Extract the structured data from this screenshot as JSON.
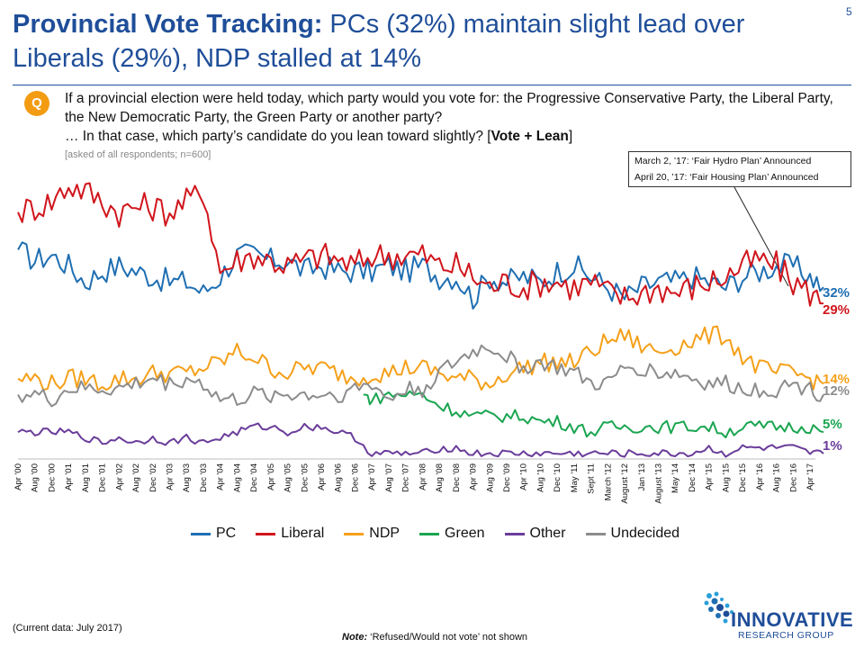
{
  "page_number": "5",
  "title": {
    "bold": "Provincial Vote Tracking:",
    "rest": " PCs (32%) maintain slight lead over Liberals (29%), NDP stalled at 14%"
  },
  "question": {
    "badge": "Q",
    "text": "If a provincial election were held today, which party would you vote for: the Progressive Conservative Party, the Liberal Party, the New Democratic Party, the Green Party or another party?",
    "lean_prefix": "… In that case, which party’s candidate do you lean toward slightly? [",
    "lean_bold": "Vote + Lean",
    "lean_suffix": "]",
    "base": "[asked of all respondents; n=600]"
  },
  "annotation": {
    "line1": "March 2, ’17: ‘Fair Hydro Plan’ Announced",
    "line2": "April 20, ’17: ‘Fair Housing Plan’ Announced"
  },
  "current_data": "(Current data: July 2017)",
  "footnote": {
    "bold": "Note:",
    "text": " ‘Refused/Would not vote’ not shown"
  },
  "logo": {
    "word": "INNOVATIVE",
    "sub": "RESEARCH GROUP"
  },
  "chart_data": {
    "type": "line",
    "x_tick_labels": [
      "Apr '00",
      "Aug '00",
      "Dec '00",
      "Apr '01",
      "Aug '01",
      "Dec '01",
      "Apr '02",
      "Aug '02",
      "Dec '02",
      "Apr '03",
      "Aug '03",
      "Dec '03",
      "Apr '04",
      "Aug '04",
      "Dec '04",
      "Apr '05",
      "Aug '05",
      "Dec '05",
      "Apr '06",
      "Aug '06",
      "Dec '06",
      "Apr '07",
      "Aug '07",
      "Dec '07",
      "Apr '08",
      "Aug '08",
      "Dec '08",
      "Apr '09",
      "Aug '09",
      "Dec '09",
      "Apr '10",
      "Aug '10",
      "Dec '10",
      "May '11",
      "Sept '11",
      "March '12",
      "August '12",
      "Jan '13",
      "August '13",
      "May '14",
      "Dec '14",
      "Apr '15",
      "Aug '15",
      "Dec '15",
      "Apr '16",
      "Aug '16",
      "Dec '16",
      "Apr '17"
    ],
    "legend_position": "bottom",
    "grid": false,
    "series": [
      {
        "name": "PC",
        "color": "#1f6fb2",
        "end_label": "32%",
        "keypoints": [
          [
            0,
            39
          ],
          [
            1,
            37
          ],
          [
            2,
            38
          ],
          [
            3,
            36
          ],
          [
            4,
            33
          ],
          [
            5,
            35
          ],
          [
            6,
            36
          ],
          [
            7,
            35
          ],
          [
            8,
            34
          ],
          [
            9,
            33
          ],
          [
            10,
            33
          ],
          [
            11,
            31
          ],
          [
            12,
            34
          ],
          [
            13,
            38
          ],
          [
            14,
            38
          ],
          [
            15,
            37
          ],
          [
            16,
            37
          ],
          [
            17,
            35
          ],
          [
            18,
            36
          ],
          [
            19,
            35
          ],
          [
            20,
            35
          ],
          [
            21,
            35
          ],
          [
            22,
            36
          ],
          [
            23,
            35
          ],
          [
            24,
            36
          ],
          [
            25,
            34
          ],
          [
            26,
            34
          ],
          [
            27,
            30
          ],
          [
            28,
            34
          ],
          [
            29,
            33
          ],
          [
            30,
            34
          ],
          [
            31,
            33
          ],
          [
            32,
            35
          ],
          [
            33,
            36
          ],
          [
            34,
            34
          ],
          [
            35,
            32
          ],
          [
            36,
            30
          ],
          [
            37,
            32
          ],
          [
            38,
            33
          ],
          [
            39,
            33
          ],
          [
            40,
            34
          ],
          [
            41,
            33
          ],
          [
            42,
            32
          ],
          [
            43,
            34
          ],
          [
            44,
            35
          ],
          [
            45,
            36
          ],
          [
            46,
            36
          ],
          [
            47,
            34
          ],
          [
            47.8,
            32
          ]
        ]
      },
      {
        "name": "Liberal",
        "color": "#d0151c",
        "end_label": "29%",
        "keypoints": [
          [
            0,
            46
          ],
          [
            1,
            47
          ],
          [
            2,
            48
          ],
          [
            3,
            51
          ],
          [
            4,
            50
          ],
          [
            5,
            48
          ],
          [
            6,
            46
          ],
          [
            7,
            47
          ],
          [
            8,
            47
          ],
          [
            9,
            46
          ],
          [
            10,
            48
          ],
          [
            11,
            50
          ],
          [
            12,
            35
          ],
          [
            13,
            37
          ],
          [
            14,
            38
          ],
          [
            15,
            37
          ],
          [
            16,
            36
          ],
          [
            17,
            37
          ],
          [
            18,
            38
          ],
          [
            19,
            37
          ],
          [
            20,
            36
          ],
          [
            21,
            38
          ],
          [
            22,
            38
          ],
          [
            23,
            38
          ],
          [
            24,
            38
          ],
          [
            25,
            36
          ],
          [
            26,
            36
          ],
          [
            27,
            34
          ],
          [
            28,
            32
          ],
          [
            29,
            33
          ],
          [
            30,
            32
          ],
          [
            31,
            33
          ],
          [
            32,
            33
          ],
          [
            33,
            32
          ],
          [
            34,
            33
          ],
          [
            35,
            31
          ],
          [
            36,
            30
          ],
          [
            37,
            31
          ],
          [
            38,
            32
          ],
          [
            39,
            31
          ],
          [
            40,
            32
          ],
          [
            41,
            33
          ],
          [
            42,
            34
          ],
          [
            43,
            36
          ],
          [
            44,
            37
          ],
          [
            45,
            36
          ],
          [
            46,
            33
          ],
          [
            47,
            31
          ],
          [
            47.8,
            29
          ]
        ]
      },
      {
        "name": "NDP",
        "color": "#f5a01a",
        "end_label": "14%",
        "keypoints": [
          [
            0,
            15
          ],
          [
            1,
            15
          ],
          [
            2,
            14
          ],
          [
            3,
            15
          ],
          [
            4,
            15
          ],
          [
            5,
            14
          ],
          [
            6,
            15
          ],
          [
            7,
            15
          ],
          [
            8,
            16
          ],
          [
            9,
            16
          ],
          [
            10,
            16
          ],
          [
            11,
            17
          ],
          [
            12,
            18
          ],
          [
            13,
            20
          ],
          [
            14,
            19
          ],
          [
            15,
            17
          ],
          [
            16,
            16
          ],
          [
            17,
            17
          ],
          [
            18,
            17
          ],
          [
            19,
            16
          ],
          [
            20,
            15
          ],
          [
            21,
            16
          ],
          [
            22,
            16
          ],
          [
            23,
            17
          ],
          [
            24,
            17
          ],
          [
            25,
            16
          ],
          [
            26,
            15
          ],
          [
            27,
            15
          ],
          [
            28,
            14
          ],
          [
            29,
            16
          ],
          [
            30,
            17
          ],
          [
            31,
            18
          ],
          [
            32,
            18
          ],
          [
            33,
            18
          ],
          [
            34,
            20
          ],
          [
            35,
            22
          ],
          [
            36,
            23
          ],
          [
            37,
            21
          ],
          [
            38,
            20
          ],
          [
            39,
            21
          ],
          [
            40,
            22
          ],
          [
            41,
            23
          ],
          [
            42,
            23
          ],
          [
            43,
            19
          ],
          [
            44,
            17
          ],
          [
            45,
            16
          ],
          [
            46,
            16
          ],
          [
            47,
            15
          ],
          [
            47.8,
            14
          ]
        ]
      },
      {
        "name": "Green",
        "color": "#1aa550",
        "end_label": "5%",
        "keypoints": [
          [
            20.5,
            12
          ],
          [
            21,
            11
          ],
          [
            22,
            12
          ],
          [
            23,
            12
          ],
          [
            24,
            12
          ],
          [
            25,
            10
          ],
          [
            26,
            9
          ],
          [
            27,
            8
          ],
          [
            28,
            8
          ],
          [
            29,
            8
          ],
          [
            30,
            8
          ],
          [
            31,
            7
          ],
          [
            32,
            7
          ],
          [
            33,
            6
          ],
          [
            34,
            5
          ],
          [
            35,
            6
          ],
          [
            36,
            6
          ],
          [
            37,
            6
          ],
          [
            38,
            6
          ],
          [
            39,
            6
          ],
          [
            40,
            6
          ],
          [
            41,
            6
          ],
          [
            42,
            5
          ],
          [
            43,
            6
          ],
          [
            44,
            6
          ],
          [
            45,
            6
          ],
          [
            46,
            6
          ],
          [
            47,
            6
          ],
          [
            47.8,
            5
          ]
        ]
      },
      {
        "name": "Other",
        "color": "#6a3d9a",
        "end_label": "1%",
        "keypoints": [
          [
            0,
            5
          ],
          [
            1,
            5
          ],
          [
            2,
            5
          ],
          [
            3,
            5
          ],
          [
            4,
            4
          ],
          [
            5,
            3
          ],
          [
            6,
            4
          ],
          [
            7,
            3
          ],
          [
            8,
            4
          ],
          [
            9,
            3
          ],
          [
            10,
            4
          ],
          [
            11,
            3
          ],
          [
            12,
            4
          ],
          [
            13,
            5
          ],
          [
            14,
            6
          ],
          [
            15,
            6
          ],
          [
            16,
            5
          ],
          [
            17,
            6
          ],
          [
            18,
            6
          ],
          [
            19,
            5
          ],
          [
            20,
            4
          ],
          [
            21,
            1
          ],
          [
            22,
            1
          ],
          [
            23,
            1
          ],
          [
            24,
            1
          ],
          [
            25,
            2
          ],
          [
            26,
            2
          ],
          [
            27,
            1
          ],
          [
            28,
            1
          ],
          [
            29,
            1
          ],
          [
            30,
            1
          ],
          [
            31,
            1
          ],
          [
            32,
            1
          ],
          [
            33,
            1
          ],
          [
            34,
            1
          ],
          [
            35,
            1
          ],
          [
            36,
            1
          ],
          [
            37,
            1
          ],
          [
            38,
            1
          ],
          [
            39,
            1
          ],
          [
            40,
            1
          ],
          [
            41,
            2
          ],
          [
            42,
            1
          ],
          [
            43,
            2
          ],
          [
            44,
            2
          ],
          [
            45,
            2
          ],
          [
            46,
            2
          ],
          [
            47,
            1
          ],
          [
            47.8,
            1
          ]
        ]
      },
      {
        "name": "Undecided",
        "color": "#8c8c8c",
        "end_label": "12%",
        "keypoints": [
          [
            0,
            12
          ],
          [
            1,
            12
          ],
          [
            2,
            11
          ],
          [
            3,
            13
          ],
          [
            4,
            13
          ],
          [
            5,
            13
          ],
          [
            6,
            13
          ],
          [
            7,
            14
          ],
          [
            8,
            15
          ],
          [
            9,
            14
          ],
          [
            10,
            15
          ],
          [
            11,
            14
          ],
          [
            12,
            11
          ],
          [
            13,
            11
          ],
          [
            14,
            12
          ],
          [
            15,
            12
          ],
          [
            16,
            12
          ],
          [
            17,
            12
          ],
          [
            18,
            12
          ],
          [
            19,
            12
          ],
          [
            20,
            13
          ],
          [
            21,
            14
          ],
          [
            22,
            11
          ],
          [
            23,
            13
          ],
          [
            24,
            13
          ],
          [
            25,
            16
          ],
          [
            26,
            18
          ],
          [
            27,
            20
          ],
          [
            28,
            21
          ],
          [
            29,
            19
          ],
          [
            30,
            17
          ],
          [
            31,
            18
          ],
          [
            32,
            17
          ],
          [
            33,
            16
          ],
          [
            34,
            14
          ],
          [
            35,
            14
          ],
          [
            36,
            17
          ],
          [
            37,
            17
          ],
          [
            38,
            16
          ],
          [
            39,
            16
          ],
          [
            40,
            15
          ],
          [
            41,
            14
          ],
          [
            42,
            14
          ],
          [
            43,
            13
          ],
          [
            44,
            13
          ],
          [
            45,
            13
          ],
          [
            46,
            14
          ],
          [
            47,
            13
          ],
          [
            47.8,
            12
          ]
        ]
      }
    ]
  }
}
